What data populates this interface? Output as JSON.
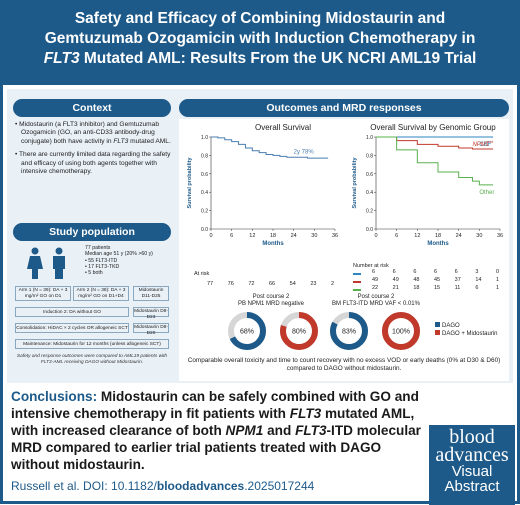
{
  "title": {
    "line1": "Safety and Efficacy of Combining Midostaurin and",
    "line2": "Gemtuzumab Ozogamicin with Induction Chemotherapy in",
    "line3a": "FLT3",
    "line3b": " Mutated AML: Results From the UK NCRI AML19 Trial"
  },
  "context": {
    "heading": "Context",
    "bullet1a": "Midostaurin (a FLT3 inhibitor) and Gemtuzumab Ozogamicin (GO, an anti-CD33 antibody-drug conjugate) both have activity in ",
    "bullet1b": "FLT3",
    "bullet1c": " mutated AML.",
    "bullet2": "There are currently limited data regarding the safety and efficacy of using both agents together with intensive chemotherapy."
  },
  "study": {
    "heading": "Study population",
    "patients": "77 patients",
    "age": "Median age 51 y (20% >60 y)",
    "itd": "• 55 FLT3-ITD",
    "tkd": "• 17 FLT3-TKD",
    "both": "• 5 both",
    "arm1": "Arm 1 (N = 39): DA + 3 mg/m² GO on D1",
    "arm2": "Arm 2 (N = 38): DA + 3 mg/m² GO on D1+D4",
    "mido1": "Midostaurin D11-D25",
    "ind2": "Induction 2: DA without GO",
    "mido2": "Midostaurin D8-D23",
    "consol": "Consolidation: HiDAC × 2 cycles OR allogeneic SCT",
    "mido3": "Midostaurin D8-D20",
    "maint": "Maintenance: Midostaurin for 12 months (unless allogeneic SCT)",
    "note": "Safety and response outcomes were compared to AML19 patients with FLT3-AML receiving DAGO without Midostaurin."
  },
  "outcomes": {
    "heading": "Outcomes and MRD responses"
  },
  "os_chart": {
    "title": "Overall Survival",
    "ylabel": "Survival probability",
    "xlabel": "Months",
    "xticks": [
      "0",
      "6",
      "12",
      "18",
      "24",
      "30",
      "36"
    ],
    "yticks": [
      "0.0",
      "0.2",
      "0.4",
      "0.6",
      "0.8",
      "1.0"
    ],
    "annotation": "2y 78%",
    "at_risk_label": "At risk",
    "at_risk": [
      "77",
      "76",
      "72",
      "66",
      "54",
      "23",
      "2"
    ]
  },
  "chart_data": [
    {
      "type": "line",
      "title": "Overall Survival",
      "xlabel": "Months",
      "ylabel": "Survival probability",
      "xlim": [
        0,
        36
      ],
      "ylim": [
        0,
        1
      ],
      "series": [
        {
          "x": [
            0,
            2,
            4,
            6,
            8,
            10,
            12,
            14,
            16,
            18,
            20,
            22,
            24,
            26,
            28,
            30,
            32,
            34
          ],
          "values": [
            1,
            0.99,
            0.97,
            0.95,
            0.92,
            0.88,
            0.85,
            0.83,
            0.81,
            0.8,
            0.79,
            0.78,
            0.78,
            0.78,
            0.77,
            0.77,
            0.77,
            0.77
          ]
        }
      ],
      "annotations": [
        "2y 78%"
      ]
    },
    {
      "type": "line",
      "title": "Overall Survival by Genomic Group",
      "xlabel": "Months",
      "ylabel": "Survival probability",
      "xlim": [
        0,
        36
      ],
      "ylim": [
        0,
        1
      ],
      "series": [
        {
          "name": "CBF",
          "values": [
            1,
            1,
            1,
            1,
            1,
            1,
            1,
            1
          ],
          "x": [
            0,
            6,
            12,
            18,
            24,
            28,
            30,
            34
          ]
        },
        {
          "name": "NPM1mut",
          "values": [
            1,
            0.96,
            0.92,
            0.9,
            0.88,
            0.87,
            0.87,
            0.87
          ],
          "x": [
            0,
            6,
            12,
            18,
            24,
            28,
            30,
            34
          ]
        },
        {
          "name": "Other",
          "values": [
            1,
            0.86,
            0.72,
            0.62,
            0.56,
            0.52,
            0.48,
            0.48
          ],
          "x": [
            0,
            6,
            12,
            18,
            24,
            28,
            30,
            34
          ]
        }
      ]
    },
    {
      "type": "pie",
      "title": "Post course 2 PB NPM1 MRD negative",
      "categories": [
        "DAGO",
        "DAGO + Midostaurin"
      ],
      "values": [
        68,
        80
      ]
    },
    {
      "type": "pie",
      "title": "Post course 2 BM FLT3-ITD MRD VAF < 0.01%",
      "categories": [
        "DAGO",
        "DAGO + Midostaurin"
      ],
      "values": [
        83,
        100
      ]
    }
  ],
  "group_chart": {
    "title": "Overall Survival by Genomic Group",
    "ylabel": "Survival probability",
    "xlabel": "Months",
    "xticks": [
      "0",
      "6",
      "12",
      "18",
      "24",
      "30",
      "36"
    ],
    "yticks": [
      "0.0",
      "0.2",
      "0.4",
      "0.6",
      "0.8",
      "1.0"
    ],
    "legend_cbf": "CBF",
    "legend_npm": "NPM1",
    "legend_npm_sup": "mut",
    "legend_other": "Other",
    "at_risk_label": "Number at risk",
    "row_cbf": [
      "6",
      "6",
      "6",
      "6",
      "6",
      "3",
      "0"
    ],
    "row_npm": [
      "49",
      "49",
      "48",
      "45",
      "37",
      "14",
      "1"
    ],
    "row_other": [
      "22",
      "21",
      "18",
      "15",
      "11",
      "6",
      "1"
    ]
  },
  "mrd": {
    "pb_title": "Post course 2",
    "pb_sub": "PB NPM1 MRD negative",
    "bm_title": "Post course 2",
    "bm_sub": "BM FLT3-ITD MRD VAF < 0.01%",
    "pb_dago": "68%",
    "pb_mido": "80%",
    "bm_dago": "83%",
    "bm_mido": "100%",
    "legend_dago": "DAGO",
    "legend_mido": "DAGO + Midostaurin",
    "footnote": "Comparable overall toxicity and time to count recovery with no excess VOD or early deaths (0% at D30 & D60) compared to DAGO without midostaurin."
  },
  "conclusion": {
    "lead": "Conclusions:",
    "text1": " Midostaurin can be safely combined with GO and intensive chemotherapy in fit patients with ",
    "flt3a": "FLT3",
    "text2": " mutated AML, with increased clearance of both ",
    "npm1": "NPM1",
    "text3": " and ",
    "flt3b": "FLT3",
    "text4": "-ITD molecular MRD compared to earlier trial patients treated with DAGO without midostaurin."
  },
  "citation": {
    "author": "Russell et al. DOI: 10.1182/",
    "journal": "bloodadvances",
    "suffix": ".2025017244"
  },
  "logo": {
    "blood": "blood",
    "advances": "advances",
    "visual": "Visual",
    "abstract": "Abstract"
  },
  "colors": {
    "brand": "#1d5a8a",
    "panel": "#e9f0f6",
    "os_line": "#4a7db0",
    "cbf": "#2e86c1",
    "npm1": "#c0392b",
    "other": "#58b04d",
    "dago": "#1d5a8a",
    "mido": "#c0392b"
  }
}
